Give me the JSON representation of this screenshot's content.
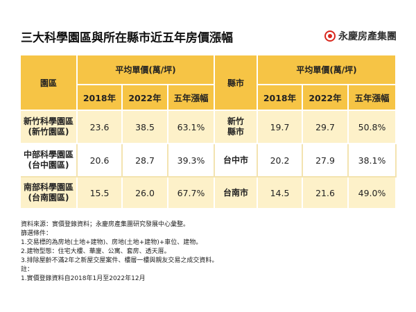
{
  "header": {
    "title": "三大科學園區與所在縣市近五年房價漲幅",
    "logo": "永慶房產集團"
  },
  "table": {
    "group_headers": [
      "園區",
      "平均單價(萬/坪)",
      "縣市",
      "平均單價(萬/坪)"
    ],
    "sub_headers": [
      "2018年",
      "2022年",
      "五年漲幅",
      "2018年",
      "2022年",
      "五年漲幅"
    ],
    "rows": [
      [
        [
          "新竹科學園區",
          "(新竹園區)"
        ],
        "23.6",
        "38.5",
        "63.1%",
        [
          "新竹",
          "縣市"
        ],
        "19.7",
        "29.7",
        "50.8%"
      ],
      [
        [
          "中部科學園區",
          "(台中園區)"
        ],
        "20.6",
        "28.7",
        "39.3%",
        [
          "台中市"
        ],
        "20.2",
        "27.9",
        "38.1%"
      ],
      [
        [
          "南部科學園區",
          "(台南園區)"
        ],
        "15.5",
        "26.0",
        "67.7%",
        [
          "台南市"
        ],
        "14.5",
        "21.6",
        "49.0%"
      ]
    ]
  },
  "notes": [
    "資料來源：實價登錄資料；永慶房產集團研究發展中心彙整。",
    "篩選條件：",
    "1.交易標的為房地(土地+建物)、房地(土地+建物)+車位、建物。",
    "2.建物型態：住宅大樓、華廈、公寓、套房、透天厝。",
    "3.排除屋齡不滿2年之新屋交屋案件、樓層一樓與親友交易之成交資料。",
    "註：",
    "1.實價登錄資料自2018年1月至2022年12月"
  ]
}
